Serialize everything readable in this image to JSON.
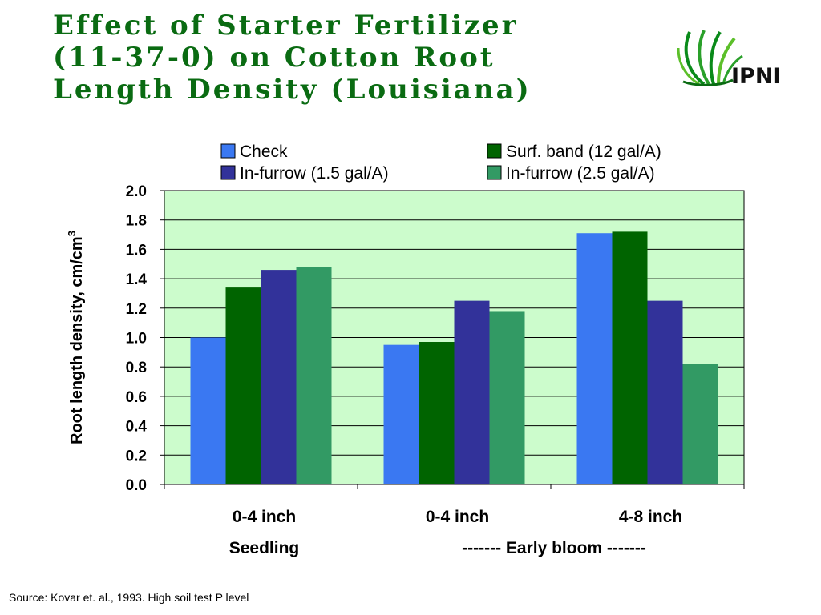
{
  "slide": {
    "title": "Effect of Starter Fertilizer\n(11-37-0) on Cotton Root\nLength Density (Louisiana)",
    "logo_text": "IPNI",
    "source": "Source: Kovar et. al., 1993. High soil test P level"
  },
  "colors": {
    "title": "#0a6b12",
    "plot_bg": "#ccfccc",
    "check": "#3a78f2",
    "surf_band": "#006400",
    "in_furrow_15": "#32329a",
    "in_furrow_25": "#329a64"
  },
  "chart_data": {
    "type": "bar",
    "title": "",
    "xlabel": "",
    "ylabel": "Root length density, cm/cm",
    "ylabel_superscript": "3",
    "ylim": [
      0,
      2.0
    ],
    "yticks": [
      "0.0",
      "0.2",
      "0.4",
      "0.6",
      "0.8",
      "1.0",
      "1.2",
      "1.4",
      "1.6",
      "1.8",
      "2.0"
    ],
    "grid": true,
    "legend_position": "top",
    "categories": [
      "0-4 inch",
      "0-4 inch",
      "4-8 inch"
    ],
    "group_labels": [
      "Seedling",
      "------- Early bloom -------"
    ],
    "series": [
      {
        "name": "Check",
        "color": "#3a78f2",
        "values": [
          1.0,
          0.95,
          1.71
        ]
      },
      {
        "name": "Surf. band (12 gal/A)",
        "color": "#006400",
        "values": [
          1.34,
          0.97,
          1.72
        ]
      },
      {
        "name": "In-furrow (1.5 gal/A)",
        "color": "#32329a",
        "values": [
          1.46,
          1.25,
          1.25
        ]
      },
      {
        "name": "In-furrow (2.5 gal/A)",
        "color": "#329a64",
        "values": [
          1.48,
          1.18,
          0.82
        ]
      }
    ]
  }
}
